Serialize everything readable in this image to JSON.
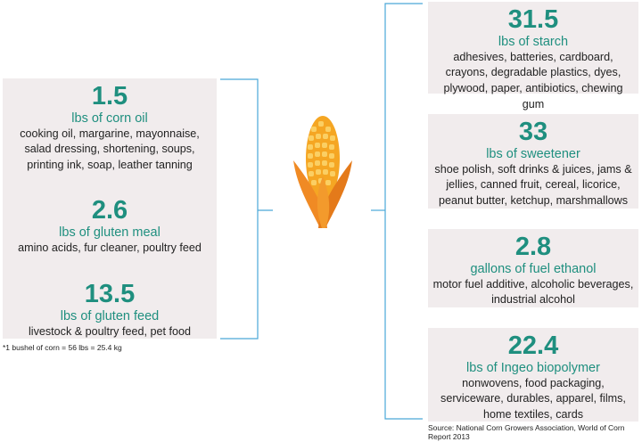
{
  "accent_color": "#1f8f7f",
  "line_color": "#4aa8d8",
  "corn_icon": "corn-cob-icon",
  "left_items": [
    {
      "amount": "1.5",
      "unit": "lbs of corn oil",
      "uses": "cooking oil, margarine, mayonnaise, salad dressing, shortening, soups, printing ink, soap, leather tanning"
    },
    {
      "amount": "2.6",
      "unit": "lbs of gluten meal",
      "uses": "amino acids, fur cleaner, poultry feed"
    },
    {
      "amount": "13.5",
      "unit": "lbs of gluten feed",
      "uses": "livestock & poultry feed, pet food"
    }
  ],
  "right_items": [
    {
      "amount": "31.5",
      "unit": "lbs of starch",
      "uses": "adhesives, batteries, cardboard, crayons, degradable plastics, dyes, plywood, paper, antibiotics, chewing gum"
    },
    {
      "amount": "33",
      "unit": "lbs of sweetener",
      "uses": "shoe polish, soft drinks & juices, jams & jellies, canned fruit, cereal, licorice, peanut butter, ketchup, marshmallows"
    },
    {
      "amount": "2.8",
      "unit": "gallons of fuel ethanol",
      "uses": "motor fuel additive, alcoholic beverages, industrial alcohol"
    },
    {
      "amount": "22.4",
      "unit": "lbs of Ingeo biopolymer",
      "uses": "nonwovens, food packaging, serviceware, durables, apparel, films, home textiles, cards"
    }
  ],
  "footnote": "*1 bushel of corn = 56 lbs = 25.4 kg",
  "source": "Source: National Corn Growers Association, World of Corn Report 2013"
}
